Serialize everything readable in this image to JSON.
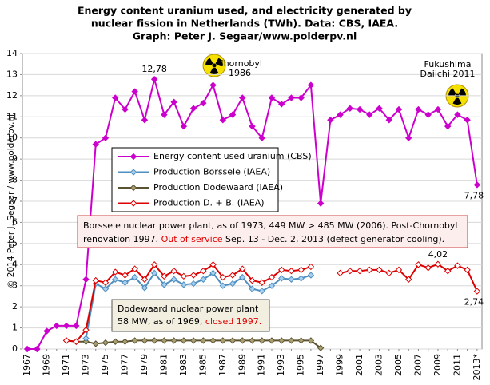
{
  "chart_data": {
    "type": "line",
    "title": [
      "Energy content uranium used, and electricity generated by",
      "nuclear fission in Netherlands (TWh). Data: CBS, IAEA.",
      "Graph: Peter J. Segaar/www.polderpv.nl"
    ],
    "credit": "© 2014 Peter J. Segaar / www.polderpv.nl",
    "categories": [
      "1967",
      null,
      "1969",
      null,
      "1971",
      null,
      "1973",
      null,
      "1975",
      null,
      "1977",
      null,
      "1979",
      null,
      "1981",
      null,
      "1983",
      null,
      "1985",
      null,
      "1987",
      null,
      "1989",
      null,
      "1991",
      null,
      "1993",
      null,
      "1995",
      null,
      "1997",
      null,
      "1999",
      null,
      "2001",
      null,
      "2003",
      null,
      "2005",
      null,
      "2007",
      null,
      "2009",
      null,
      "2011",
      null,
      "2013*"
    ],
    "ylim": [
      0,
      14
    ],
    "yticks": [
      0,
      1,
      2,
      3,
      4,
      5,
      6,
      7,
      8,
      9,
      10,
      11,
      12,
      13,
      14
    ],
    "grid": true,
    "series": [
      {
        "name": "Energy content used uranium (CBS)",
        "color": "#cc00cc",
        "marker_fill": "#cc00cc",
        "values": [
          0,
          0,
          0.85,
          1.1,
          1.1,
          1.1,
          3.3,
          9.7,
          10.0,
          11.9,
          11.35,
          12.2,
          10.85,
          12.78,
          11.1,
          11.7,
          10.55,
          11.4,
          11.65,
          12.5,
          10.85,
          11.1,
          11.9,
          10.55,
          10.0,
          11.9,
          11.6,
          11.9,
          11.9,
          12.5,
          6.9,
          10.85,
          11.1,
          11.4,
          11.35,
          11.1,
          11.4,
          10.85,
          11.35,
          10.0,
          11.35,
          11.1,
          11.35,
          10.55,
          11.1,
          10.85,
          7.78
        ],
        "value_labels": [
          null,
          null,
          null,
          null,
          null,
          null,
          null,
          null,
          null,
          null,
          null,
          null,
          null,
          "12,78",
          null,
          null,
          null,
          null,
          null,
          null,
          null,
          null,
          null,
          null,
          null,
          null,
          null,
          null,
          null,
          null,
          null,
          null,
          null,
          null,
          null,
          null,
          null,
          null,
          null,
          null,
          null,
          null,
          null,
          null,
          null,
          null,
          "7,78"
        ]
      },
      {
        "name": "Production Borssele (IAEA)",
        "color": "#4f8fc0",
        "marker_fill": "#a8d0ee",
        "values": [
          null,
          null,
          null,
          null,
          null,
          null,
          0.5,
          3.1,
          2.85,
          3.3,
          3.15,
          3.4,
          2.9,
          3.6,
          3.05,
          3.3,
          3.05,
          3.1,
          3.3,
          3.6,
          3.0,
          3.1,
          3.4,
          2.85,
          2.75,
          3.0,
          3.35,
          3.3,
          3.35,
          3.5,
          null,
          null,
          null,
          null,
          null,
          null,
          null,
          null,
          null,
          null,
          null,
          null,
          null,
          null,
          null,
          null,
          null
        ]
      },
      {
        "name": "Production Dodewaard (IAEA)",
        "color": "#5a5230",
        "marker_fill": "#a89e70",
        "values": [
          null,
          null,
          null,
          null,
          0.4,
          0.35,
          0.35,
          0.25,
          0.3,
          0.35,
          0.35,
          0.4,
          0.4,
          0.4,
          0.4,
          0.4,
          0.4,
          0.4,
          0.4,
          0.4,
          0.4,
          0.4,
          0.4,
          0.4,
          0.4,
          0.4,
          0.4,
          0.4,
          0.4,
          0.4,
          0.05,
          null,
          null,
          null,
          null,
          null,
          null,
          null,
          null,
          null,
          null,
          null,
          null,
          null,
          null,
          null,
          null
        ]
      },
      {
        "name": "Production D. + B. (IAEA)",
        "color": "#dd0000",
        "marker_fill": "#ffffff",
        "values": [
          null,
          null,
          null,
          null,
          0.4,
          0.35,
          0.9,
          3.25,
          3.15,
          3.65,
          3.5,
          3.8,
          3.3,
          4.0,
          3.45,
          3.7,
          3.45,
          3.5,
          3.7,
          4.0,
          3.4,
          3.5,
          3.8,
          3.25,
          3.15,
          3.4,
          3.75,
          3.7,
          3.75,
          3.9,
          null,
          null,
          3.6,
          3.7,
          3.7,
          3.75,
          3.75,
          3.6,
          3.75,
          3.3,
          4.0,
          3.85,
          4.02,
          3.7,
          3.95,
          3.75,
          2.74
        ],
        "value_labels": [
          null,
          null,
          null,
          null,
          null,
          null,
          null,
          null,
          null,
          null,
          null,
          null,
          null,
          null,
          null,
          null,
          null,
          null,
          null,
          null,
          null,
          null,
          null,
          null,
          null,
          null,
          null,
          null,
          null,
          null,
          null,
          null,
          null,
          null,
          null,
          null,
          null,
          null,
          null,
          null,
          null,
          null,
          "4,02",
          null,
          null,
          null,
          "2,74"
        ]
      }
    ],
    "annotations": [
      {
        "lines": [
          [
            {
              "text": "Chornobyl"
            }
          ],
          [
            {
              "text": "1986"
            }
          ]
        ]
      },
      {
        "lines": [
          [
            {
              "text": "Fukushima"
            }
          ],
          [
            {
              "text": "Daiichi 2011"
            }
          ]
        ]
      },
      {
        "lines": [
          [
            {
              "text": "Borssele nuclear power plant, as of 1973, 449 MW > 485 MW (2006). Post-Chornobyl"
            }
          ],
          [
            {
              "text": "renovation 1997. "
            },
            {
              "text": "Out of service",
              "color": "#e00000"
            },
            {
              "text": " Sep. 13 - Dec. 2, 2013 (defect generator cooling)."
            }
          ]
        ]
      },
      {
        "lines": [
          [
            {
              "text": "Dodewaard nuclear power plant"
            }
          ],
          [
            {
              "text": "58 MW, as of 1969, "
            },
            {
              "text": "closed 1997.",
              "color": "#e00000"
            }
          ]
        ]
      }
    ]
  }
}
